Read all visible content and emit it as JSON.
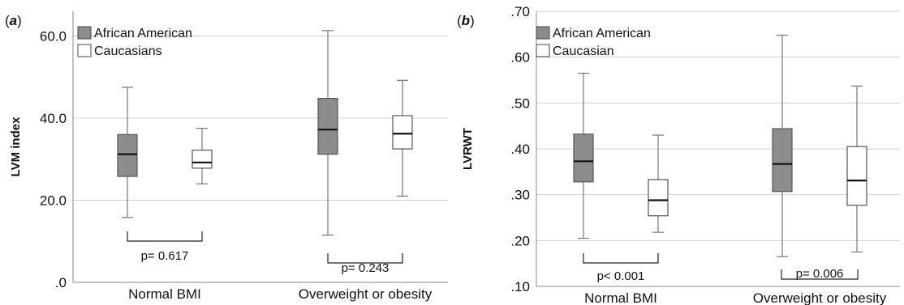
{
  "chart_data": [
    {
      "type": "box",
      "panel_label": "a",
      "ylabel": "LVM index",
      "categories": [
        "Normal BMI",
        "Overweight or obesity"
      ],
      "ylim": [
        0,
        66
      ],
      "yticks": [
        0,
        20,
        40,
        60
      ],
      "yticklabels": [
        ".0",
        "20.0",
        "40.0",
        "60.0"
      ],
      "grid": true,
      "legend_position": "top-left",
      "series": [
        {
          "name": "African American",
          "color": "#8c8c8c",
          "boxes": [
            {
              "min": 15.8,
              "q1": 25.8,
              "median": 31.2,
              "q3": 36.0,
              "max": 47.5
            },
            {
              "min": 11.5,
              "q1": 31.2,
              "median": 37.2,
              "q3": 44.8,
              "max": 61.3
            }
          ]
        },
        {
          "name": "Caucasians",
          "color": "#ffffff",
          "boxes": [
            {
              "min": 24.0,
              "q1": 27.8,
              "median": 29.2,
              "q3": 32.2,
              "max": 37.5
            },
            {
              "min": 21.0,
              "q1": 32.5,
              "median": 36.2,
              "q3": 40.6,
              "max": 49.2
            }
          ]
        }
      ],
      "pvalues": [
        "p= 0.617",
        "p= 0.243"
      ]
    },
    {
      "type": "box",
      "panel_label": "b",
      "ylabel": "LVRWT",
      "categories": [
        "Normal BMI",
        "Overweight or obesity"
      ],
      "ylim": [
        0.1,
        0.7
      ],
      "yticks": [
        0.1,
        0.2,
        0.3,
        0.4,
        0.5,
        0.6,
        0.7
      ],
      "yticklabels": [
        ".10",
        ".20",
        ".30",
        ".40",
        ".50",
        ".60",
        ".70"
      ],
      "grid": true,
      "legend_position": "top-left",
      "series": [
        {
          "name": "African American",
          "color": "#8c8c8c",
          "boxes": [
            {
              "min": 0.205,
              "q1": 0.328,
              "median": 0.373,
              "q3": 0.432,
              "max": 0.565
            },
            {
              "min": 0.165,
              "q1": 0.307,
              "median": 0.367,
              "q3": 0.444,
              "max": 0.648
            }
          ]
        },
        {
          "name": "Caucasian",
          "color": "#ffffff",
          "boxes": [
            {
              "min": 0.218,
              "q1": 0.254,
              "median": 0.288,
              "q3": 0.333,
              "max": 0.43
            },
            {
              "min": 0.175,
              "q1": 0.277,
              "median": 0.331,
              "q3": 0.405,
              "max": 0.537
            }
          ]
        }
      ],
      "pvalues": [
        "p< 0.001",
        "p= 0.006"
      ]
    }
  ]
}
